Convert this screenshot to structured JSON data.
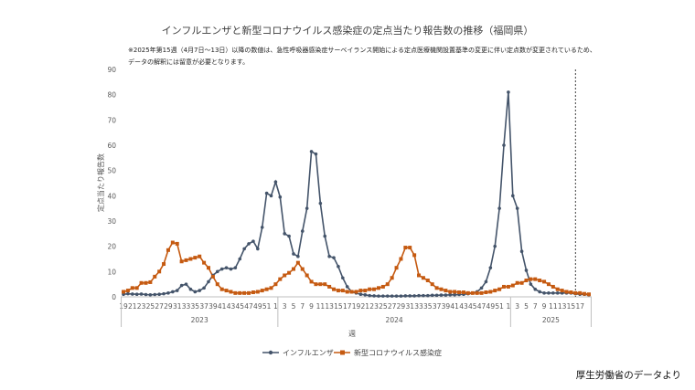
{
  "chart_data": {
    "type": "line",
    "title": "インフルエンザと新型コロナウイルス感染症の定点当たり報告数の推移（福岡県）",
    "note_lines": [
      "※2025年第15週（4月7日～13日）以降の数値は、急性呼吸器感染症サーベイランス開始による定点医療機関設置基準の変更に伴い定点数が変更されているため、",
      "データの解釈には留意が必要となります。"
    ],
    "ylabel": "定点当たり報告数",
    "xlabel": "週",
    "ylim": [
      0,
      90
    ],
    "yticks": [
      0,
      10,
      20,
      30,
      40,
      50,
      60,
      70,
      80,
      90
    ],
    "x_tick_labels": [
      "19",
      "21",
      "23",
      "25",
      "27",
      "29",
      "31",
      "33",
      "35",
      "37",
      "39",
      "41",
      "43",
      "45",
      "47",
      "49",
      "51",
      "1",
      "3",
      "5",
      "7",
      "9",
      "11",
      "13",
      "15",
      "17",
      "19",
      "21",
      "23",
      "25",
      "27",
      "29",
      "31",
      "33",
      "35",
      "37",
      "39",
      "41",
      "43",
      "45",
      "47",
      "49",
      "51",
      "1",
      "3",
      "5",
      "7",
      "9",
      "11",
      "13",
      "15",
      "17"
    ],
    "year_groups": [
      {
        "label": "2023",
        "start": 0,
        "end": 34
      },
      {
        "label": "2024",
        "start": 35,
        "end": 86
      },
      {
        "label": "2025",
        "start": 87,
        "end": 104
      }
    ],
    "marker_line_index": 101,
    "grid": false,
    "legend_position": "bottom",
    "series": [
      {
        "name": "インフルエンザ",
        "color": "#44546a",
        "marker": "circle",
        "values": [
          1.0,
          1.2,
          1.1,
          1.0,
          1.1,
          0.9,
          0.8,
          0.9,
          1.0,
          1.2,
          1.5,
          2.0,
          2.5,
          4.5,
          5.0,
          3.0,
          2.0,
          2.5,
          3.5,
          6.0,
          8.5,
          10.0,
          11.0,
          11.5,
          11.0,
          11.5,
          15.0,
          19.0,
          21.0,
          22.0,
          19.0,
          27.5,
          41.0,
          40.0,
          45.5,
          39.5,
          25.0,
          24.0,
          17.0,
          16.0,
          26.0,
          35.0,
          57.5,
          56.5,
          37.0,
          24.0,
          16.0,
          15.5,
          12.0,
          7.5,
          4.0,
          2.0,
          1.5,
          1.0,
          0.8,
          0.5,
          0.4,
          0.3,
          0.3,
          0.3,
          0.3,
          0.3,
          0.3,
          0.4,
          0.4,
          0.4,
          0.5,
          0.5,
          0.5,
          0.6,
          0.6,
          0.7,
          0.7,
          0.8,
          0.8,
          0.9,
          1.0,
          1.2,
          1.5,
          2.0,
          3.5,
          6.0,
          11.5,
          20.0,
          35.0,
          60.0,
          81.0,
          40.0,
          35.0,
          18.0,
          10.5,
          5.0,
          3.0,
          2.0,
          1.5,
          1.5,
          1.5,
          1.5,
          1.5,
          1.5,
          1.5,
          1.2,
          1.0,
          1.0,
          0.8
        ]
      },
      {
        "name": "新型コロナウイルス感染症",
        "color": "#c55a11",
        "marker": "square",
        "values": [
          2.0,
          2.5,
          3.5,
          3.5,
          5.5,
          5.5,
          5.8,
          8.0,
          10.0,
          13.0,
          18.5,
          21.5,
          21.0,
          14.0,
          14.5,
          15.0,
          15.5,
          16.0,
          13.5,
          11.5,
          8.0,
          5.0,
          3.0,
          2.5,
          2.0,
          1.5,
          1.5,
          1.5,
          1.5,
          1.8,
          2.0,
          2.5,
          3.0,
          3.5,
          5.0,
          7.0,
          8.5,
          9.5,
          11.0,
          13.5,
          11.0,
          8.5,
          6.0,
          5.0,
          5.0,
          5.0,
          4.0,
          3.0,
          2.5,
          2.5,
          2.0,
          2.0,
          2.0,
          2.5,
          2.5,
          3.0,
          3.0,
          3.5,
          4.0,
          5.0,
          7.5,
          11.5,
          15.0,
          19.5,
          19.5,
          16.5,
          8.5,
          7.5,
          6.5,
          5.0,
          3.5,
          3.0,
          2.5,
          2.0,
          2.0,
          1.8,
          1.8,
          1.5,
          1.5,
          1.5,
          1.5,
          1.8,
          2.0,
          2.5,
          3.0,
          4.0,
          4.0,
          4.5,
          5.5,
          5.5,
          6.5,
          7.0,
          7.0,
          6.5,
          6.0,
          5.0,
          4.0,
          3.0,
          2.5,
          2.0,
          1.8,
          1.5,
          1.5,
          1.2,
          1.0
        ]
      }
    ]
  },
  "source_text": "厚生労働省のデータより"
}
